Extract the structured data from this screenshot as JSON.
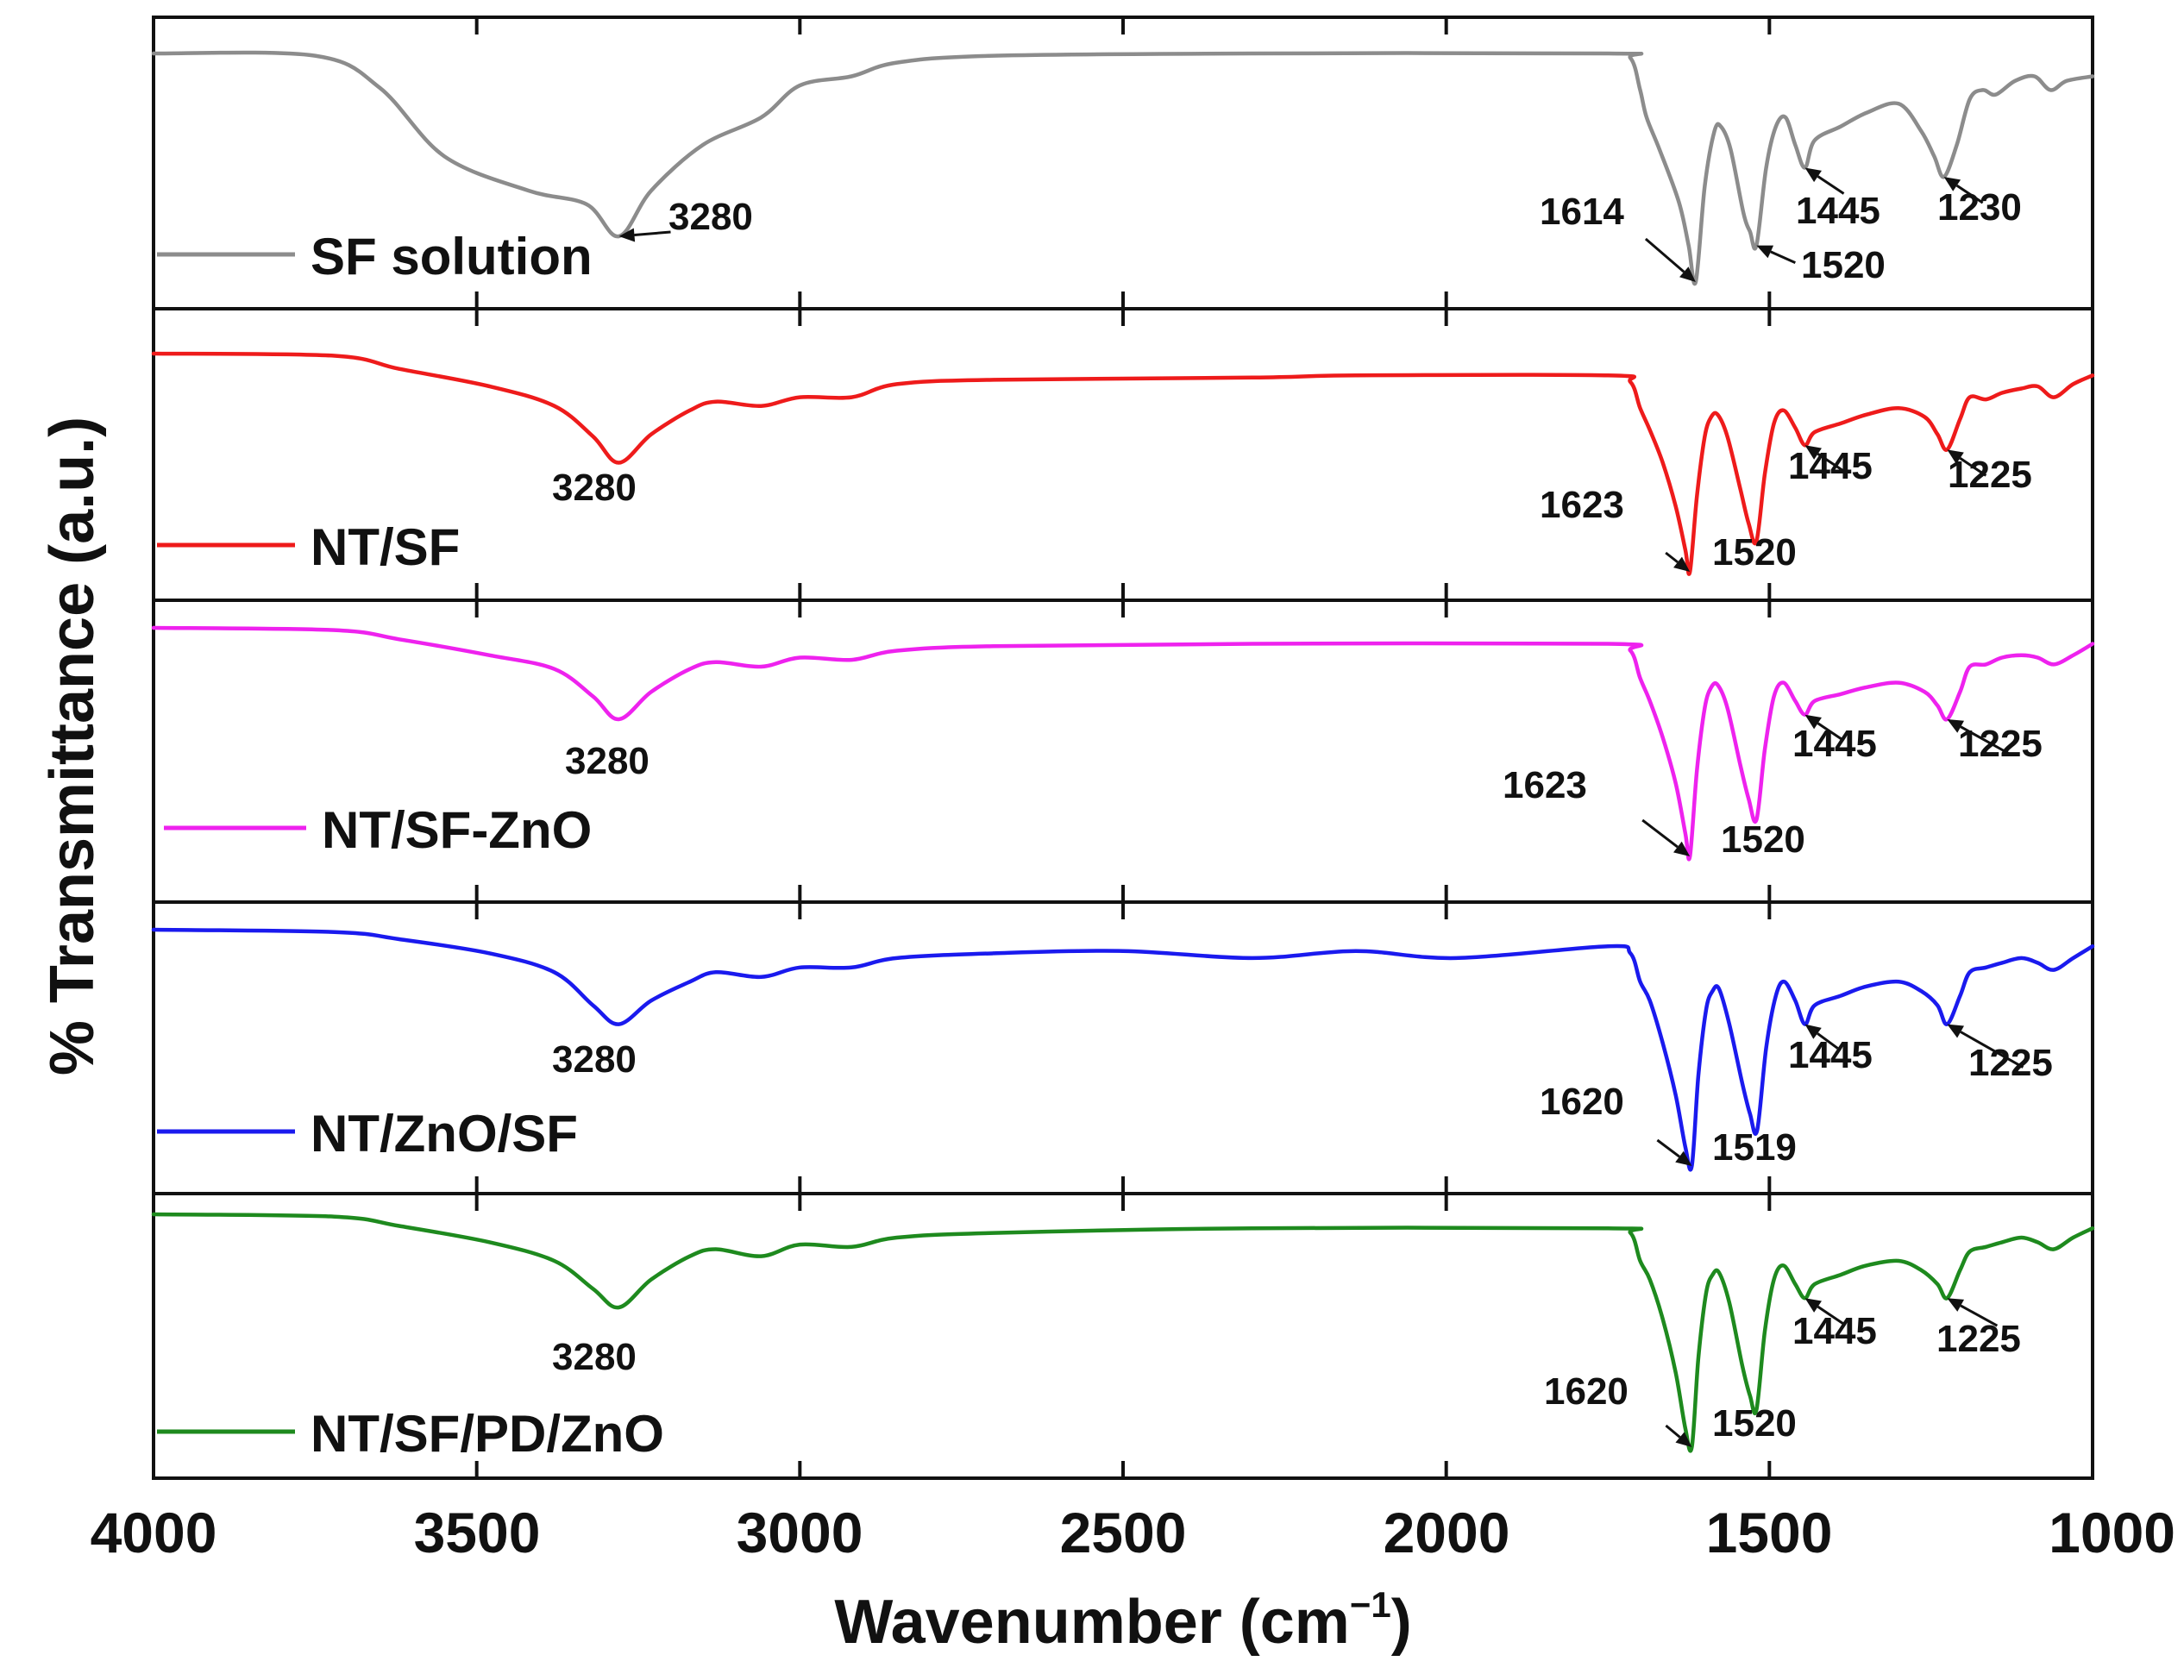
{
  "chart_data": {
    "type": "line",
    "xlabel": "Wavenumber (cm",
    "xlabel_sup": "−1",
    "xlabel_close": ")",
    "ylabel": "% Transmittance (a.u.)",
    "xlim": [
      4000,
      1000
    ],
    "xticks": [
      4000,
      3500,
      3000,
      2500,
      2000,
      1500,
      1000
    ],
    "xtick_labels": [
      "4000",
      "3500",
      "3000",
      "2500",
      "2000",
      "1500",
      "1000"
    ],
    "series": [
      {
        "name": "SF solution",
        "color": "#8c8c8c",
        "points": [
          [
            4000,
            1
          ],
          [
            3750,
            0.99
          ],
          [
            3650,
            0.85
          ],
          [
            3550,
            0.55
          ],
          [
            3420,
            0.4
          ],
          [
            3330,
            0.34
          ],
          [
            3280,
            0.2
          ],
          [
            3230,
            0.4
          ],
          [
            3150,
            0.6
          ],
          [
            3060,
            0.72
          ],
          [
            3000,
            0.86
          ],
          [
            2920,
            0.9
          ],
          [
            2850,
            0.96
          ],
          [
            2700,
            0.99
          ],
          [
            2300,
            1
          ],
          [
            1750,
            1
          ],
          [
            1715,
            0.98
          ],
          [
            1700,
            0.84
          ],
          [
            1690,
            0.72
          ],
          [
            1670,
            0.58
          ],
          [
            1640,
            0.35
          ],
          [
            1625,
            0.16
          ],
          [
            1614,
            0
          ],
          [
            1600,
            0.42
          ],
          [
            1585,
            0.66
          ],
          [
            1575,
            0.68
          ],
          [
            1560,
            0.58
          ],
          [
            1540,
            0.3
          ],
          [
            1530,
            0.22
          ],
          [
            1520,
            0.16
          ],
          [
            1505,
            0.5
          ],
          [
            1490,
            0.68
          ],
          [
            1475,
            0.72
          ],
          [
            1460,
            0.6
          ],
          [
            1445,
            0.5
          ],
          [
            1430,
            0.62
          ],
          [
            1390,
            0.68
          ],
          [
            1350,
            0.74
          ],
          [
            1300,
            0.78
          ],
          [
            1265,
            0.66
          ],
          [
            1245,
            0.55
          ],
          [
            1230,
            0.46
          ],
          [
            1210,
            0.6
          ],
          [
            1190,
            0.8
          ],
          [
            1170,
            0.84
          ],
          [
            1150,
            0.82
          ],
          [
            1120,
            0.88
          ],
          [
            1090,
            0.9
          ],
          [
            1065,
            0.84
          ],
          [
            1040,
            0.88
          ],
          [
            1000,
            0.9
          ]
        ],
        "peaks": [
          {
            "wavenumber": 3280,
            "label": "3280"
          },
          {
            "wavenumber": 1614,
            "label": "1614"
          },
          {
            "wavenumber": 1520,
            "label": "1520"
          },
          {
            "wavenumber": 1445,
            "label": "1445"
          },
          {
            "wavenumber": 1230,
            "label": "1230"
          }
        ]
      },
      {
        "name": "NT/SF",
        "color": "#ee1b1b",
        "points": [
          [
            4000,
            1
          ],
          [
            3720,
            0.99
          ],
          [
            3620,
            0.93
          ],
          [
            3480,
            0.85
          ],
          [
            3380,
            0.76
          ],
          [
            3320,
            0.62
          ],
          [
            3280,
            0.5
          ],
          [
            3230,
            0.63
          ],
          [
            3170,
            0.74
          ],
          [
            3130,
            0.78
          ],
          [
            3060,
            0.76
          ],
          [
            3000,
            0.8
          ],
          [
            2920,
            0.8
          ],
          [
            2850,
            0.86
          ],
          [
            2700,
            0.88
          ],
          [
            2300,
            0.89
          ],
          [
            2140,
            0.9
          ],
          [
            1750,
            0.9
          ],
          [
            1715,
            0.87
          ],
          [
            1700,
            0.75
          ],
          [
            1685,
            0.65
          ],
          [
            1665,
            0.5
          ],
          [
            1645,
            0.3
          ],
          [
            1630,
            0.1
          ],
          [
            1623,
            0
          ],
          [
            1612,
            0.35
          ],
          [
            1600,
            0.62
          ],
          [
            1590,
            0.71
          ],
          [
            1580,
            0.72
          ],
          [
            1565,
            0.62
          ],
          [
            1545,
            0.38
          ],
          [
            1532,
            0.22
          ],
          [
            1520,
            0.14
          ],
          [
            1507,
            0.45
          ],
          [
            1493,
            0.68
          ],
          [
            1478,
            0.74
          ],
          [
            1460,
            0.66
          ],
          [
            1445,
            0.58
          ],
          [
            1430,
            0.64
          ],
          [
            1390,
            0.68
          ],
          [
            1350,
            0.72
          ],
          [
            1300,
            0.75
          ],
          [
            1260,
            0.71
          ],
          [
            1240,
            0.63
          ],
          [
            1225,
            0.56
          ],
          [
            1205,
            0.7
          ],
          [
            1190,
            0.8
          ],
          [
            1165,
            0.79
          ],
          [
            1140,
            0.82
          ],
          [
            1110,
            0.84
          ],
          [
            1085,
            0.85
          ],
          [
            1060,
            0.8
          ],
          [
            1030,
            0.86
          ],
          [
            1000,
            0.9
          ]
        ],
        "peaks": [
          {
            "wavenumber": 3280,
            "label": "3280"
          },
          {
            "wavenumber": 1623,
            "label": "1623"
          },
          {
            "wavenumber": 1520,
            "label": "1520"
          },
          {
            "wavenumber": 1445,
            "label": "1445"
          },
          {
            "wavenumber": 1225,
            "label": "1225"
          }
        ]
      },
      {
        "name": "NT/SF-ZnO",
        "color": "#ee22ee",
        "points": [
          [
            4000,
            1
          ],
          [
            3720,
            0.99
          ],
          [
            3620,
            0.95
          ],
          [
            3480,
            0.88
          ],
          [
            3380,
            0.82
          ],
          [
            3320,
            0.7
          ],
          [
            3280,
            0.6
          ],
          [
            3230,
            0.72
          ],
          [
            3170,
            0.82
          ],
          [
            3130,
            0.85
          ],
          [
            3060,
            0.83
          ],
          [
            3000,
            0.87
          ],
          [
            2920,
            0.86
          ],
          [
            2850,
            0.9
          ],
          [
            2700,
            0.92
          ],
          [
            2300,
            0.93
          ],
          [
            1750,
            0.93
          ],
          [
            1715,
            0.9
          ],
          [
            1700,
            0.78
          ],
          [
            1685,
            0.68
          ],
          [
            1665,
            0.52
          ],
          [
            1645,
            0.32
          ],
          [
            1630,
            0.1
          ],
          [
            1623,
            0
          ],
          [
            1612,
            0.38
          ],
          [
            1600,
            0.65
          ],
          [
            1590,
            0.74
          ],
          [
            1580,
            0.75
          ],
          [
            1565,
            0.65
          ],
          [
            1545,
            0.4
          ],
          [
            1532,
            0.25
          ],
          [
            1520,
            0.16
          ],
          [
            1507,
            0.47
          ],
          [
            1493,
            0.7
          ],
          [
            1478,
            0.76
          ],
          [
            1460,
            0.68
          ],
          [
            1445,
            0.62
          ],
          [
            1430,
            0.68
          ],
          [
            1390,
            0.71
          ],
          [
            1350,
            0.74
          ],
          [
            1300,
            0.76
          ],
          [
            1260,
            0.72
          ],
          [
            1240,
            0.66
          ],
          [
            1225,
            0.6
          ],
          [
            1205,
            0.72
          ],
          [
            1190,
            0.83
          ],
          [
            1165,
            0.84
          ],
          [
            1140,
            0.87
          ],
          [
            1110,
            0.88
          ],
          [
            1085,
            0.87
          ],
          [
            1060,
            0.84
          ],
          [
            1030,
            0.88
          ],
          [
            1000,
            0.93
          ]
        ],
        "peaks": [
          {
            "wavenumber": 3280,
            "label": "3280"
          },
          {
            "wavenumber": 1623,
            "label": "1623"
          },
          {
            "wavenumber": 1520,
            "label": "1520"
          },
          {
            "wavenumber": 1445,
            "label": "1445"
          },
          {
            "wavenumber": 1225,
            "label": "1225"
          }
        ]
      },
      {
        "name": "NT/ZnO/SF",
        "color": "#1a1aee",
        "points": [
          [
            4000,
            1
          ],
          [
            3720,
            0.99
          ],
          [
            3620,
            0.96
          ],
          [
            3480,
            0.9
          ],
          [
            3380,
            0.82
          ],
          [
            3320,
            0.68
          ],
          [
            3280,
            0.6
          ],
          [
            3230,
            0.7
          ],
          [
            3170,
            0.78
          ],
          [
            3130,
            0.82
          ],
          [
            3060,
            0.8
          ],
          [
            3000,
            0.84
          ],
          [
            2920,
            0.84
          ],
          [
            2850,
            0.88
          ],
          [
            2700,
            0.9
          ],
          [
            2500,
            0.91
          ],
          [
            2300,
            0.88
          ],
          [
            2140,
            0.91
          ],
          [
            1985,
            0.88
          ],
          [
            1750,
            0.93
          ],
          [
            1715,
            0.9
          ],
          [
            1700,
            0.78
          ],
          [
            1685,
            0.7
          ],
          [
            1665,
            0.52
          ],
          [
            1645,
            0.3
          ],
          [
            1630,
            0.08
          ],
          [
            1620,
            0
          ],
          [
            1610,
            0.38
          ],
          [
            1598,
            0.66
          ],
          [
            1588,
            0.74
          ],
          [
            1578,
            0.75
          ],
          [
            1562,
            0.6
          ],
          [
            1542,
            0.35
          ],
          [
            1530,
            0.22
          ],
          [
            1519,
            0.15
          ],
          [
            1505,
            0.5
          ],
          [
            1490,
            0.72
          ],
          [
            1477,
            0.78
          ],
          [
            1460,
            0.7
          ],
          [
            1445,
            0.6
          ],
          [
            1430,
            0.68
          ],
          [
            1390,
            0.72
          ],
          [
            1350,
            0.76
          ],
          [
            1300,
            0.78
          ],
          [
            1265,
            0.74
          ],
          [
            1240,
            0.68
          ],
          [
            1225,
            0.6
          ],
          [
            1205,
            0.72
          ],
          [
            1190,
            0.82
          ],
          [
            1165,
            0.84
          ],
          [
            1140,
            0.86
          ],
          [
            1110,
            0.88
          ],
          [
            1085,
            0.86
          ],
          [
            1060,
            0.83
          ],
          [
            1030,
            0.88
          ],
          [
            1000,
            0.93
          ]
        ],
        "peaks": [
          {
            "wavenumber": 3280,
            "label": "3280"
          },
          {
            "wavenumber": 1620,
            "label": "1620"
          },
          {
            "wavenumber": 1519,
            "label": "1519"
          },
          {
            "wavenumber": 1445,
            "label": "1445"
          },
          {
            "wavenumber": 1225,
            "label": "1225"
          }
        ]
      },
      {
        "name": "NT/SF/PD/ZnO",
        "color": "#1e8a1e",
        "points": [
          [
            4000,
            1
          ],
          [
            3720,
            0.99
          ],
          [
            3620,
            0.95
          ],
          [
            3480,
            0.88
          ],
          [
            3380,
            0.8
          ],
          [
            3320,
            0.68
          ],
          [
            3280,
            0.6
          ],
          [
            3230,
            0.72
          ],
          [
            3170,
            0.82
          ],
          [
            3130,
            0.85
          ],
          [
            3060,
            0.82
          ],
          [
            3000,
            0.87
          ],
          [
            2920,
            0.86
          ],
          [
            2850,
            0.9
          ],
          [
            2700,
            0.92
          ],
          [
            2300,
            0.94
          ],
          [
            1750,
            0.94
          ],
          [
            1715,
            0.92
          ],
          [
            1700,
            0.8
          ],
          [
            1685,
            0.72
          ],
          [
            1665,
            0.55
          ],
          [
            1645,
            0.32
          ],
          [
            1630,
            0.08
          ],
          [
            1620,
            0
          ],
          [
            1610,
            0.38
          ],
          [
            1598,
            0.66
          ],
          [
            1588,
            0.74
          ],
          [
            1578,
            0.75
          ],
          [
            1562,
            0.62
          ],
          [
            1542,
            0.35
          ],
          [
            1530,
            0.22
          ],
          [
            1520,
            0.16
          ],
          [
            1507,
            0.5
          ],
          [
            1493,
            0.72
          ],
          [
            1478,
            0.78
          ],
          [
            1460,
            0.7
          ],
          [
            1445,
            0.64
          ],
          [
            1430,
            0.7
          ],
          [
            1390,
            0.74
          ],
          [
            1350,
            0.78
          ],
          [
            1300,
            0.8
          ],
          [
            1265,
            0.76
          ],
          [
            1240,
            0.7
          ],
          [
            1225,
            0.64
          ],
          [
            1205,
            0.76
          ],
          [
            1190,
            0.84
          ],
          [
            1165,
            0.86
          ],
          [
            1140,
            0.88
          ],
          [
            1110,
            0.9
          ],
          [
            1085,
            0.88
          ],
          [
            1060,
            0.85
          ],
          [
            1030,
            0.9
          ],
          [
            1000,
            0.94
          ]
        ],
        "peaks": [
          {
            "wavenumber": 3280,
            "label": "3280"
          },
          {
            "wavenumber": 1620,
            "label": "1620"
          },
          {
            "wavenumber": 1520,
            "label": "1520"
          },
          {
            "wavenumber": 1445,
            "label": "1445"
          },
          {
            "wavenumber": 1225,
            "label": "1225"
          }
        ]
      }
    ]
  }
}
